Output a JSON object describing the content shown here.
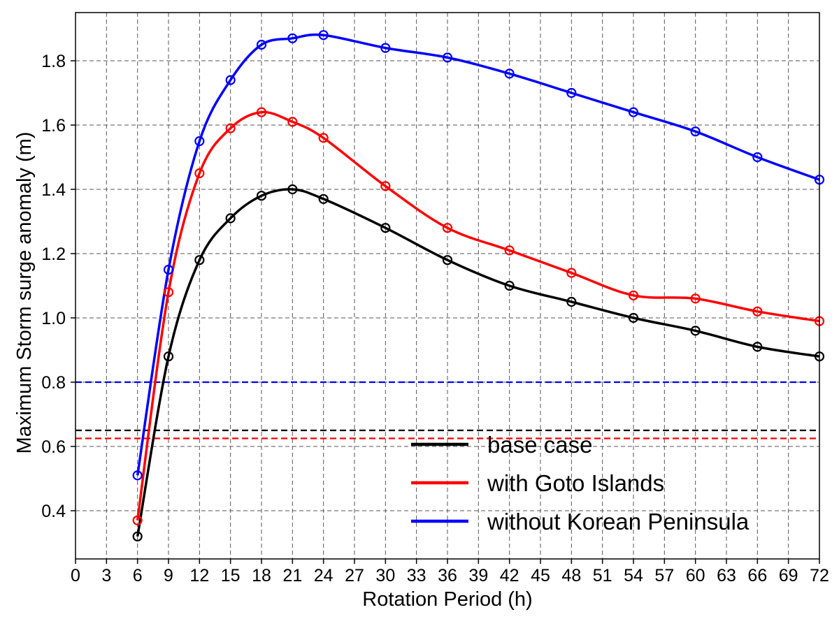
{
  "chart_data": {
    "type": "line",
    "xlabel": "Rotation Period (h)",
    "ylabel": "Maximum Storm surge anomaly (m)",
    "xlim": [
      0,
      72
    ],
    "ylim": [
      0.25,
      1.95
    ],
    "x_ticks": [
      0,
      3,
      6,
      9,
      12,
      15,
      18,
      21,
      24,
      27,
      30,
      33,
      36,
      39,
      42,
      45,
      48,
      51,
      54,
      57,
      60,
      63,
      66,
      69,
      72
    ],
    "y_ticks": [
      0.4,
      0.6,
      0.8,
      1.0,
      1.2,
      1.4,
      1.6,
      1.8
    ],
    "grid": true,
    "legend_position": "bottom-right",
    "x": [
      6,
      9,
      12,
      15,
      18,
      21,
      24,
      30,
      36,
      42,
      48,
      54,
      60,
      66,
      72
    ],
    "series": [
      {
        "name": "base case",
        "color": "#000000",
        "values": [
          0.32,
          0.88,
          1.18,
          1.31,
          1.38,
          1.4,
          1.37,
          1.28,
          1.18,
          1.1,
          1.05,
          1.0,
          0.96,
          0.91,
          0.88
        ],
        "reference_line": 0.65
      },
      {
        "name": "with Goto Islands",
        "color": "#ff0000",
        "values": [
          0.37,
          1.08,
          1.45,
          1.59,
          1.64,
          1.61,
          1.56,
          1.41,
          1.28,
          1.21,
          1.14,
          1.07,
          1.06,
          1.02,
          0.99
        ],
        "reference_line": 0.625
      },
      {
        "name": "without Korean Peninsula",
        "color": "#0000ff",
        "values": [
          0.51,
          1.15,
          1.55,
          1.74,
          1.85,
          1.87,
          1.88,
          1.84,
          1.81,
          1.76,
          1.7,
          1.64,
          1.58,
          1.5,
          1.43
        ],
        "reference_line": 0.8
      }
    ]
  }
}
